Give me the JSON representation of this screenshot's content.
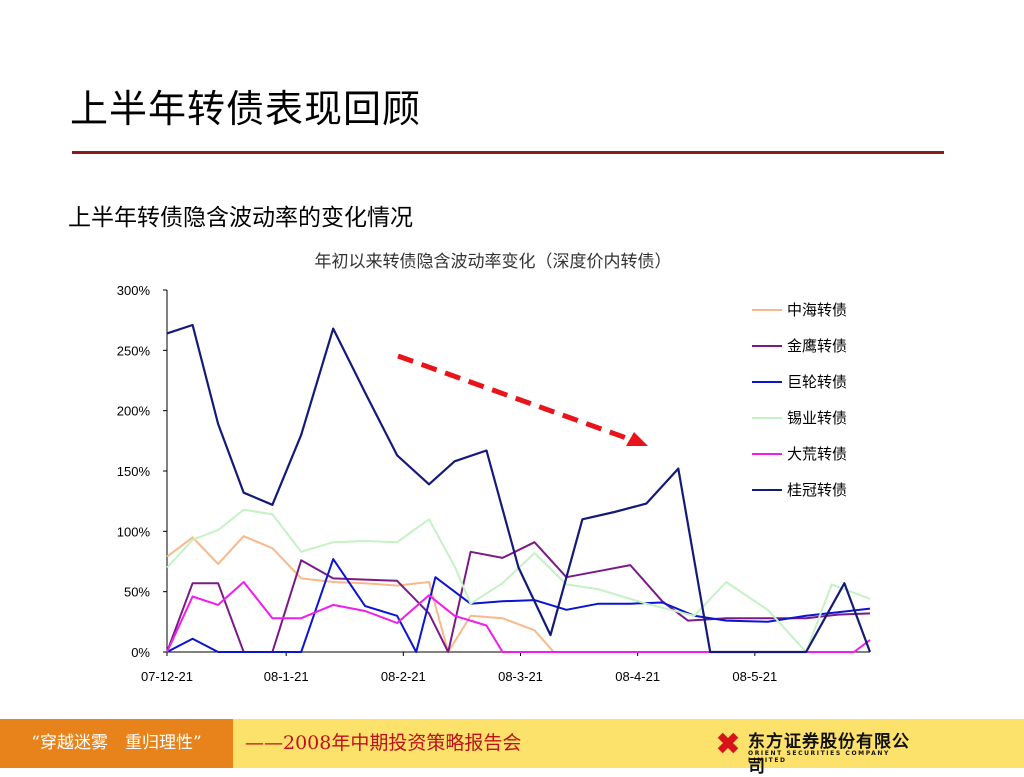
{
  "slide": {
    "title": "上半年转债表现回顾",
    "subtitle": "上半年转债隐含波动率的变化情况"
  },
  "footer": {
    "slogan": "“穿越迷雾　重归理性”",
    "report": "——2008年中期投资策略报告会",
    "company_name": "东方证券股份有限公司",
    "company_en": "ORIENT SECURITIES COMPANY LIMITED",
    "colors": {
      "bar": "#fce16a",
      "left_block": "#e8821a",
      "report_text": "#c0101a",
      "logo_red": "#d7141a"
    }
  },
  "chart_data": {
    "type": "line",
    "title": "年初以来转债隐含波动率变化（深度价内转债）",
    "xlabel": "",
    "ylabel": "",
    "x_ticks": [
      "07-12-21",
      "08-1-21",
      "08-2-21",
      "08-3-21",
      "08-4-21",
      "08-5-21"
    ],
    "y_ticks": [
      "0%",
      "50%",
      "100%",
      "150%",
      "200%",
      "250%",
      "300%"
    ],
    "ylim": [
      0,
      300
    ],
    "legend_position": "right",
    "grid": false,
    "series": [
      {
        "name": "中海转债",
        "color": "#f7b98a",
        "values": [
          [
            0,
            79
          ],
          [
            8,
            95
          ],
          [
            16,
            73
          ],
          [
            24,
            96
          ],
          [
            33,
            86
          ],
          [
            42,
            61
          ],
          [
            52,
            58
          ],
          [
            62,
            57
          ],
          [
            72,
            55
          ],
          [
            82,
            58
          ],
          [
            88,
            0
          ],
          [
            95,
            30
          ],
          [
            105,
            28
          ],
          [
            115,
            18
          ],
          [
            121,
            0
          ],
          [
            130,
            0
          ]
        ]
      },
      {
        "name": "金鹰转债",
        "color": "#7a1a86",
        "values": [
          [
            0,
            0
          ],
          [
            8,
            57
          ],
          [
            16,
            57
          ],
          [
            24,
            0
          ],
          [
            33,
            0
          ],
          [
            42,
            76
          ],
          [
            52,
            61
          ],
          [
            62,
            60
          ],
          [
            72,
            59
          ],
          [
            82,
            32
          ],
          [
            88,
            0
          ],
          [
            95,
            83
          ],
          [
            105,
            78
          ],
          [
            115,
            91
          ],
          [
            125,
            62
          ],
          [
            135,
            67
          ],
          [
            145,
            72
          ],
          [
            155,
            42
          ],
          [
            163,
            26
          ],
          [
            175,
            28
          ],
          [
            188,
            28
          ],
          [
            200,
            28
          ],
          [
            210,
            31
          ],
          [
            220,
            32
          ]
        ]
      },
      {
        "name": "巨轮转债",
        "color": "#0a14d2",
        "values": [
          [
            0,
            0
          ],
          [
            8,
            11
          ],
          [
            16,
            0
          ],
          [
            24,
            0
          ],
          [
            33,
            0
          ],
          [
            42,
            0
          ],
          [
            52,
            77
          ],
          [
            62,
            38
          ],
          [
            72,
            30
          ],
          [
            78,
            0
          ],
          [
            84,
            62
          ],
          [
            95,
            40
          ],
          [
            105,
            42
          ],
          [
            115,
            43
          ],
          [
            125,
            35
          ],
          [
            135,
            40
          ],
          [
            145,
            40
          ],
          [
            155,
            41
          ],
          [
            165,
            30
          ],
          [
            175,
            26
          ],
          [
            188,
            25
          ],
          [
            200,
            30
          ],
          [
            210,
            33
          ],
          [
            220,
            36
          ]
        ]
      },
      {
        "name": "锡业转债",
        "color": "#c4f2c4",
        "values": [
          [
            0,
            70
          ],
          [
            8,
            93
          ],
          [
            16,
            101
          ],
          [
            24,
            118
          ],
          [
            33,
            114
          ],
          [
            42,
            83
          ],
          [
            52,
            91
          ],
          [
            62,
            92
          ],
          [
            72,
            91
          ],
          [
            82,
            110
          ],
          [
            90,
            71
          ],
          [
            95,
            40
          ],
          [
            105,
            57
          ],
          [
            115,
            82
          ],
          [
            125,
            56
          ],
          [
            135,
            52
          ],
          [
            150,
            40
          ],
          [
            165,
            30
          ],
          [
            175,
            58
          ],
          [
            188,
            35
          ],
          [
            200,
            0
          ],
          [
            208,
            56
          ],
          [
            220,
            44
          ]
        ]
      },
      {
        "name": "大荒转债",
        "color": "#f01cf0",
        "values": [
          [
            0,
            0
          ],
          [
            8,
            46
          ],
          [
            16,
            39
          ],
          [
            24,
            58
          ],
          [
            33,
            28
          ],
          [
            42,
            28
          ],
          [
            52,
            39
          ],
          [
            62,
            34
          ],
          [
            72,
            24
          ],
          [
            82,
            47
          ],
          [
            90,
            30
          ],
          [
            100,
            22
          ],
          [
            105,
            0
          ],
          [
            150,
            0
          ],
          [
            160,
            0
          ],
          [
            175,
            0
          ],
          [
            200,
            0
          ],
          [
            215,
            0
          ],
          [
            220,
            10
          ]
        ]
      },
      {
        "name": "桂冠转债",
        "color": "#141a7a",
        "values": [
          [
            0,
            264
          ],
          [
            8,
            271
          ],
          [
            16,
            189
          ],
          [
            24,
            132
          ],
          [
            33,
            122
          ],
          [
            42,
            180
          ],
          [
            52,
            268
          ],
          [
            62,
            215
          ],
          [
            72,
            163
          ],
          [
            82,
            139
          ],
          [
            90,
            158
          ],
          [
            100,
            167
          ],
          [
            110,
            70
          ],
          [
            120,
            14
          ],
          [
            130,
            110
          ],
          [
            140,
            116
          ],
          [
            150,
            123
          ],
          [
            160,
            152
          ],
          [
            170,
            0
          ],
          [
            180,
            0
          ],
          [
            190,
            0
          ],
          [
            200,
            0
          ],
          [
            212,
            57
          ],
          [
            220,
            0
          ]
        ]
      }
    ],
    "annotation": {
      "type": "dashed-arrow",
      "color": "#e8141a",
      "direction": "down-right"
    }
  }
}
